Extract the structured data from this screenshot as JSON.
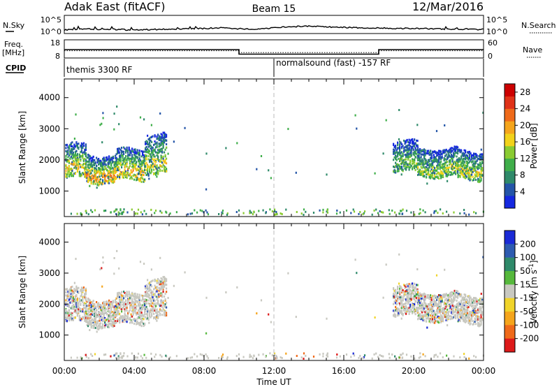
{
  "header": {
    "site": "Adak East (fitACF)",
    "beam": "Beam 15",
    "date": "12/Mar/2016"
  },
  "left_labels": {
    "nsky": "N.Sky",
    "freq": "Freq.",
    "mhz": "[MHz]",
    "cpid": "CPID"
  },
  "right_labels": {
    "nsearch": "N.Search",
    "nave": "Nave"
  },
  "noise_ticks": {
    "top": "10^5",
    "bottom": "10^0"
  },
  "freq_ticks": {
    "top": "18",
    "bottom": "8"
  },
  "nave_ticks": {
    "top": "60",
    "bottom": "0"
  },
  "cpid_labels": {
    "first": "themis 3300 RF",
    "second": "normalsound (fast) -157 RF"
  },
  "panel1": {
    "ylabel": "Slant Range [km]",
    "cbar_label": "Power [dB]"
  },
  "panel2": {
    "ylabel": "Slant Range [km]",
    "cbar_label": "Velocity [m s^-1]"
  },
  "xlabel": "Time UT",
  "chart_data": [
    {
      "type": "line",
      "name": "noise-sky",
      "ylim_log10": [
        0,
        5
      ],
      "x_hours": [
        0,
        1,
        2,
        3,
        4,
        5,
        6,
        7,
        8,
        9,
        10,
        11,
        12,
        13,
        14,
        15,
        16,
        17,
        18,
        19,
        20,
        21,
        22,
        23,
        24
      ],
      "y_log10": [
        1.0,
        1.3,
        1.2,
        1.1,
        1.0,
        1.1,
        1.2,
        1.3,
        1.4,
        1.6,
        1.3,
        1.2,
        1.5,
        1.9,
        2.0,
        1.8,
        1.7,
        1.6,
        1.5,
        1.4,
        1.4,
        1.3,
        1.2,
        1.2,
        1.1
      ]
    },
    {
      "type": "line",
      "name": "frequency",
      "ylim": [
        8,
        18
      ],
      "x_hours": [
        0,
        10,
        10,
        18,
        18,
        24
      ],
      "y": [
        12.6,
        12.6,
        10.1,
        10.1,
        12.6,
        12.6
      ]
    },
    {
      "type": "table",
      "name": "cpid",
      "segments": [
        {
          "label": "themis 3300 RF",
          "start_hour": 0,
          "end_hour": 12
        },
        {
          "label": "normalsound (fast) -157 RF",
          "start_hour": 12,
          "end_hour": 24
        }
      ]
    },
    {
      "type": "heatmap",
      "name": "power",
      "xlim_hours": [
        0,
        24
      ],
      "ylim_km": [
        180,
        4600
      ],
      "y_ticks": [
        1000,
        2000,
        3000,
        4000
      ],
      "x_tick_labels": [
        "00:00",
        "04:00",
        "08:00",
        "12:00",
        "16:00",
        "20:00",
        "00:00"
      ],
      "colorbar": {
        "ticks": [
          4,
          8,
          12,
          16,
          20,
          24,
          28
        ],
        "range": [
          0,
          30
        ],
        "colors": [
          "#1528e0",
          "#2455a8",
          "#2f8a6a",
          "#3fae4a",
          "#8acb32",
          "#f2d21a",
          "#f5a51c",
          "#ef6a1a",
          "#e03218",
          "#cc0000"
        ]
      },
      "regions": [
        {
          "t0": 0.05,
          "t1": 1.2,
          "base_km": 1650,
          "spread_km": 550,
          "level": 18
        },
        {
          "t0": 1.2,
          "t1": 3.0,
          "base_km": 1450,
          "spread_km": 450,
          "level": 22
        },
        {
          "t0": 3.0,
          "t1": 4.6,
          "base_km": 1550,
          "spread_km": 500,
          "level": 20
        },
        {
          "t0": 4.6,
          "t1": 5.8,
          "base_km": 1850,
          "spread_km": 650,
          "level": 17
        },
        {
          "t0": 18.8,
          "t1": 20.2,
          "base_km": 1800,
          "spread_km": 500,
          "level": 12
        },
        {
          "t0": 20.2,
          "t1": 22.5,
          "base_km": 1650,
          "spread_km": 450,
          "level": 15
        },
        {
          "t0": 22.5,
          "t1": 23.9,
          "base_km": 1550,
          "spread_km": 450,
          "level": 17
        }
      ]
    },
    {
      "type": "heatmap",
      "name": "velocity",
      "xlim_hours": [
        0,
        24
      ],
      "ylim_km": [
        180,
        4600
      ],
      "y_ticks": [
        1000,
        2000,
        3000,
        4000
      ],
      "x_tick_labels": [
        "00:00",
        "04:00",
        "08:00",
        "12:00",
        "16:00",
        "20:00",
        "00:00"
      ],
      "colorbar": {
        "ticks": [
          200,
          100,
          50,
          15,
          -15,
          -50,
          -100,
          -200
        ],
        "colors": [
          "#1a2ad6",
          "#2d5bb0",
          "#2f8a6a",
          "#56b83c",
          "#c8c8c0",
          "#f0d42a",
          "#f5a51c",
          "#ef6a1a",
          "#dd1a1a"
        ]
      }
    }
  ]
}
